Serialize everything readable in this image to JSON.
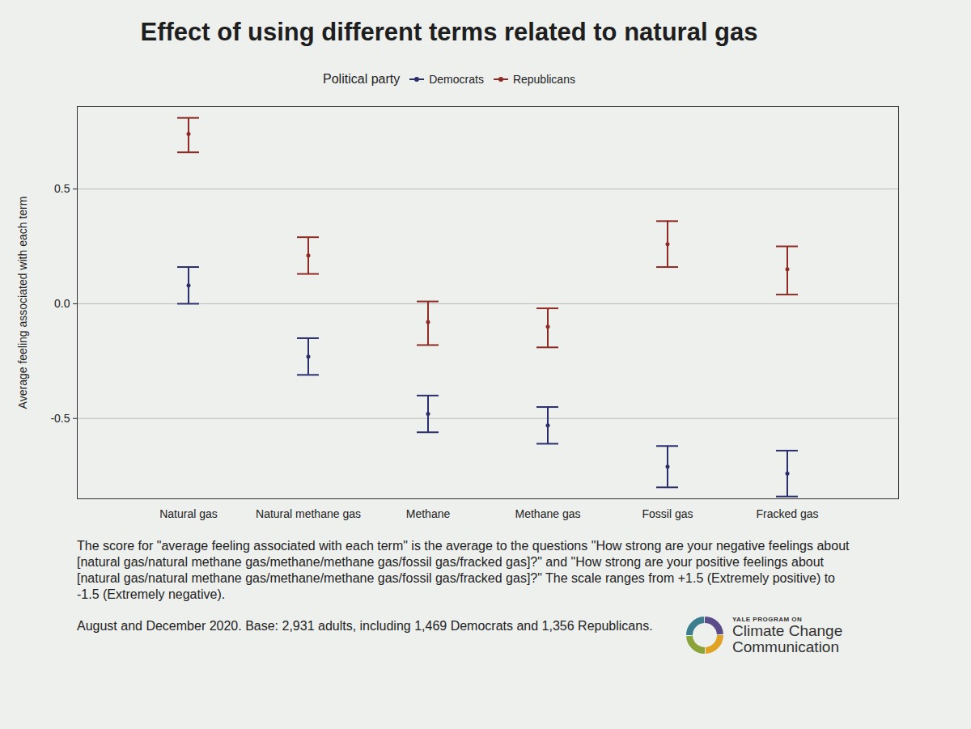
{
  "chart_data": {
    "type": "errorbar",
    "title": "Effect of using different terms related to natural gas",
    "legend_title": "Political party",
    "legend": "top",
    "y_label": "Average feeling associated with each term",
    "categories": [
      "Natural gas",
      "Natural methane gas",
      "Methane",
      "Methane gas",
      "Fossil gas",
      "Fracked gas"
    ],
    "series": [
      {
        "name": "Democrats",
        "color": "#2c2e6b",
        "marker": "circle",
        "values": [
          0.08,
          -0.23,
          -0.48,
          -0.53,
          -0.71,
          -0.74
        ],
        "lower": [
          0.0,
          -0.31,
          -0.56,
          -0.61,
          -0.8,
          -0.84
        ],
        "upper": [
          0.16,
          -0.15,
          -0.4,
          -0.45,
          -0.62,
          -0.64
        ]
      },
      {
        "name": "Republicans",
        "color": "#8e2b25",
        "marker": "circle",
        "values": [
          0.74,
          0.21,
          -0.08,
          -0.1,
          0.26,
          0.15
        ],
        "lower": [
          0.66,
          0.13,
          -0.18,
          -0.19,
          0.16,
          0.04
        ],
        "upper": [
          0.81,
          0.29,
          0.01,
          -0.02,
          0.36,
          0.25
        ]
      }
    ],
    "ylim": [
      -0.85,
      0.86
    ],
    "yticks": [
      -0.5,
      {
        "value": 0,
        "label": "0.0"
      },
      0.5
    ],
    "grid": true,
    "caption": "The score for \"average feeling associated with each term\" is the average to the questions \"How strong are your negative feelings about [natural gas/natural methane gas/methane/methane gas/fossil gas/fracked gas]?\" and \"How strong are your positive feelings about [natural gas/natural methane gas/methane/methane gas/fossil gas/fracked gas]?\" The scale ranges from +1.5 (Extremely positive) to -1.5 (Extremely negative).",
    "source": "August and December 2020. Base: 2,931 adults, including 1,469 Democrats and 1,356 Republicans.",
    "logo_text": [
      "YALE PROGRAM ON",
      "Climate Change",
      "Communication"
    ]
  }
}
